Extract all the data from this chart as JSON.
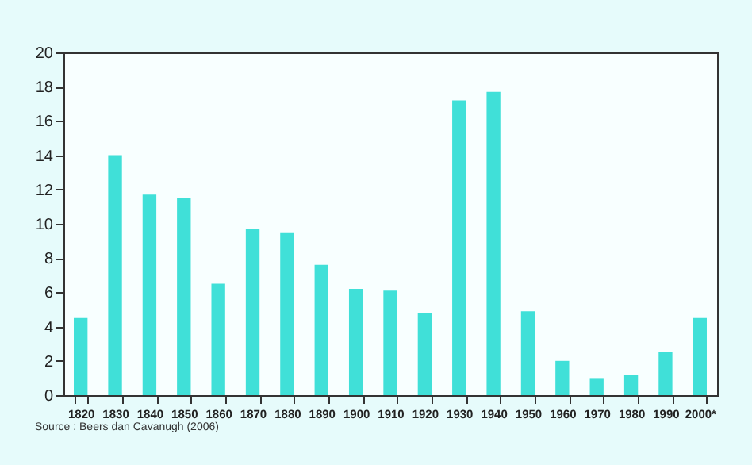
{
  "chart_data": {
    "type": "bar",
    "categories": [
      "1820",
      "1830",
      "1840",
      "1850",
      "1860",
      "1870",
      "1880",
      "1890",
      "1900",
      "1910",
      "1920",
      "1930",
      "1940",
      "1950",
      "1960",
      "1970",
      "1980",
      "1990",
      "2000*"
    ],
    "values": [
      4.5,
      14.0,
      11.7,
      11.5,
      6.5,
      9.7,
      9.5,
      7.6,
      6.2,
      6.1,
      4.8,
      17.2,
      17.7,
      4.9,
      2.0,
      1.0,
      1.2,
      2.5,
      4.5
    ],
    "color": "#40e0d8",
    "ylim": [
      0,
      20
    ],
    "yticks": [
      0,
      2,
      4,
      6,
      8,
      10,
      12,
      14,
      16,
      18,
      20
    ],
    "grid": false,
    "legend": false,
    "annotations": [
      "Source : Beers dan Cavanugh (2006)"
    ]
  }
}
